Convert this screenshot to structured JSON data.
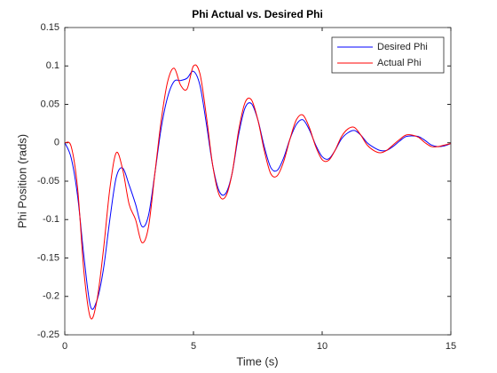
{
  "chart_data": {
    "type": "line",
    "title": "Phi Actual vs. Desired Phi",
    "xlabel": "Time (s)",
    "ylabel": "Phi Position (rads)",
    "x": [
      0,
      0.25,
      0.5,
      0.75,
      1,
      1.25,
      1.5,
      1.75,
      2,
      2.25,
      2.5,
      2.75,
      3,
      3.25,
      3.5,
      3.75,
      4,
      4.25,
      4.5,
      4.75,
      5,
      5.25,
      5.5,
      5.75,
      6,
      6.25,
      6.5,
      6.75,
      7,
      7.25,
      7.5,
      7.75,
      8,
      8.25,
      8.5,
      8.75,
      9,
      9.25,
      9.5,
      9.75,
      10,
      10.25,
      10.5,
      10.75,
      11,
      11.25,
      11.5,
      11.75,
      12,
      12.25,
      12.5,
      12.75,
      13,
      13.25,
      13.5,
      13.75,
      14,
      14.25,
      14.5,
      14.75,
      15
    ],
    "series": [
      {
        "name": "Desired Phi",
        "color": "#0000ff",
        "values": [
          0,
          -0.02,
          -0.07,
          -0.15,
          -0.213,
          -0.205,
          -0.165,
          -0.1,
          -0.045,
          -0.033,
          -0.055,
          -0.08,
          -0.109,
          -0.095,
          -0.04,
          0.02,
          0.06,
          0.08,
          0.081,
          0.084,
          0.093,
          0.075,
          0.025,
          -0.03,
          -0.063,
          -0.066,
          -0.04,
          0.01,
          0.045,
          0.051,
          0.03,
          -0.005,
          -0.032,
          -0.036,
          -0.02,
          0.005,
          0.024,
          0.03,
          0.017,
          -0.003,
          -0.018,
          -0.021,
          -0.01,
          0.005,
          0.013,
          0.016,
          0.01,
          0,
          -0.006,
          -0.01,
          -0.01,
          -0.005,
          0.002,
          0.008,
          0.009,
          0.008,
          0.003,
          -0.003,
          -0.005,
          -0.004,
          -0.001
        ]
      },
      {
        "name": "Actual Phi",
        "color": "#ff0000",
        "values": [
          0,
          -0.005,
          -0.06,
          -0.17,
          -0.228,
          -0.205,
          -0.14,
          -0.06,
          -0.013,
          -0.035,
          -0.08,
          -0.1,
          -0.13,
          -0.11,
          -0.04,
          0.03,
          0.08,
          0.097,
          0.075,
          0.07,
          0.1,
          0.09,
          0.035,
          -0.03,
          -0.068,
          -0.07,
          -0.04,
          0.015,
          0.052,
          0.056,
          0.03,
          -0.01,
          -0.04,
          -0.043,
          -0.025,
          0.005,
          0.03,
          0.036,
          0.02,
          -0.005,
          -0.022,
          -0.023,
          -0.01,
          0.008,
          0.018,
          0.02,
          0.01,
          -0.003,
          -0.01,
          -0.013,
          -0.01,
          -0.003,
          0.004,
          0.01,
          0.01,
          0.007,
          0,
          -0.005,
          -0.005,
          -0.003,
          -0.001
        ]
      }
    ],
    "xlim": [
      0,
      15
    ],
    "xticks": [
      0,
      5,
      10,
      15
    ],
    "ylim": [
      -0.25,
      0.15
    ],
    "yticks": [
      -0.25,
      -0.2,
      -0.15,
      -0.1,
      -0.05,
      0,
      0.05,
      0.1,
      0.15
    ],
    "grid": false,
    "legend": "northeast"
  }
}
